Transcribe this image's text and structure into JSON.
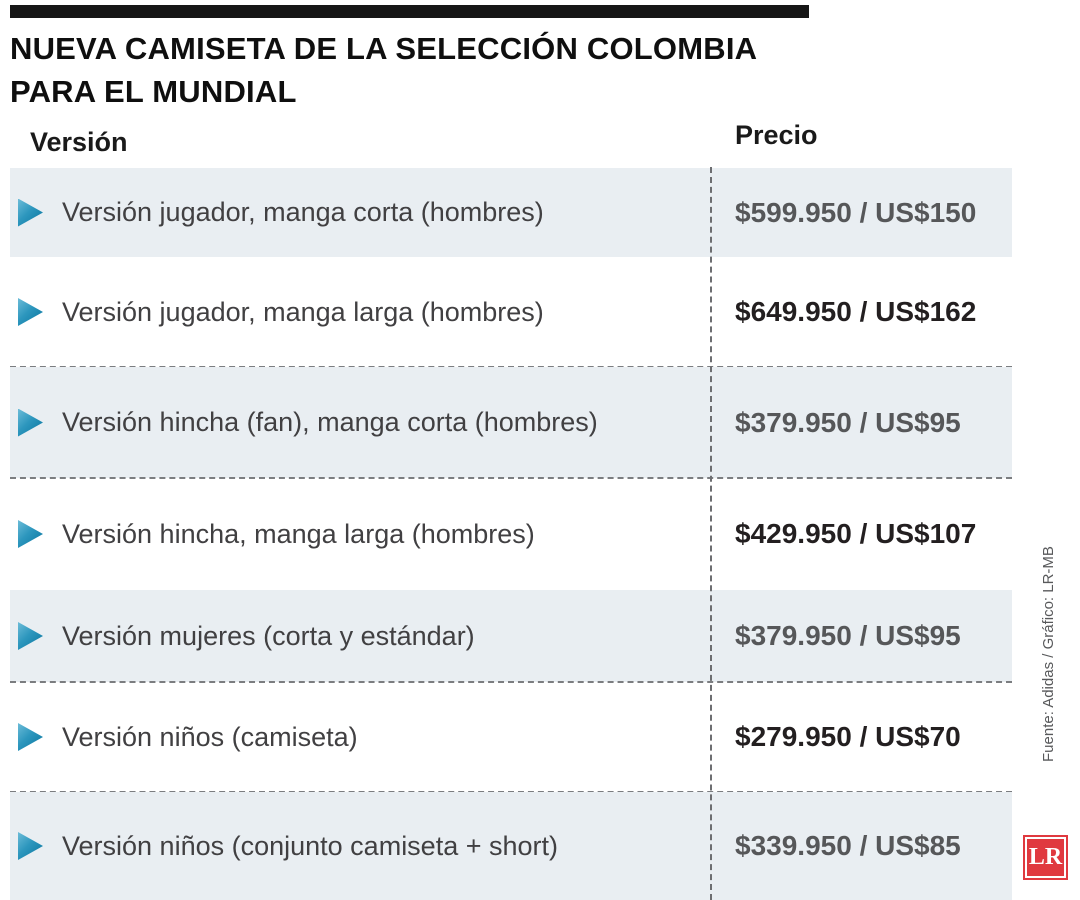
{
  "title": {
    "line1": "NUEVA CAMISETA DE LA SELECCIÓN COLOMBIA",
    "line2": "PARA EL MUNDIAL"
  },
  "columns": {
    "version": "Versión",
    "price": "Precio"
  },
  "rows": [
    {
      "version": "Versión jugador, manga corta (hombres)",
      "price": "$599.950 / US$150"
    },
    {
      "version": "Versión jugador, manga larga (hombres)",
      "price": "$649.950 / US$162"
    },
    {
      "version": "Versión hincha (fan), manga corta (hombres)",
      "price": "$379.950 / US$95"
    },
    {
      "version": "Versión hincha, manga larga (hombres)",
      "price": "$429.950 / US$107"
    },
    {
      "version": "Versión mujeres (corta y estándar)",
      "price": "$379.950 / US$95"
    },
    {
      "version": "Versión niños (camiseta)",
      "price": "$279.950 / US$70"
    },
    {
      "version": "Versión niños (conjunto camiseta + short)",
      "price": "$339.950 / US$85"
    }
  ],
  "source": "Fuente: Adidas / Gráfico: LR-MB",
  "logo": "LR",
  "colors": {
    "triangle_accent": "#2c96bd",
    "row_shade": "#e9eef2",
    "logo_red": "#e0393f",
    "price_gray": "#565759",
    "price_black": "#231f20"
  },
  "chart_data": {
    "type": "table",
    "title": "Nueva camiseta de la Selección Colombia para el Mundial",
    "columns": [
      "Versión",
      "Precio (COP)",
      "Precio (USD)"
    ],
    "rows": [
      {
        "version": "Versión jugador, manga corta (hombres)",
        "price_cop": 599950,
        "price_usd": 150
      },
      {
        "version": "Versión jugador, manga larga (hombres)",
        "price_cop": 649950,
        "price_usd": 162
      },
      {
        "version": "Versión hincha (fan), manga corta (hombres)",
        "price_cop": 379950,
        "price_usd": 95
      },
      {
        "version": "Versión hincha, manga larga (hombres)",
        "price_cop": 429950,
        "price_usd": 107
      },
      {
        "version": "Versión mujeres (corta y estándar)",
        "price_cop": 379950,
        "price_usd": 95
      },
      {
        "version": "Versión niños (camiseta)",
        "price_cop": 279950,
        "price_usd": 70
      },
      {
        "version": "Versión niños (conjunto camiseta + short)",
        "price_cop": 339950,
        "price_usd": 85
      }
    ],
    "source": "Fuente: Adidas / Gráfico: LR-MB"
  }
}
